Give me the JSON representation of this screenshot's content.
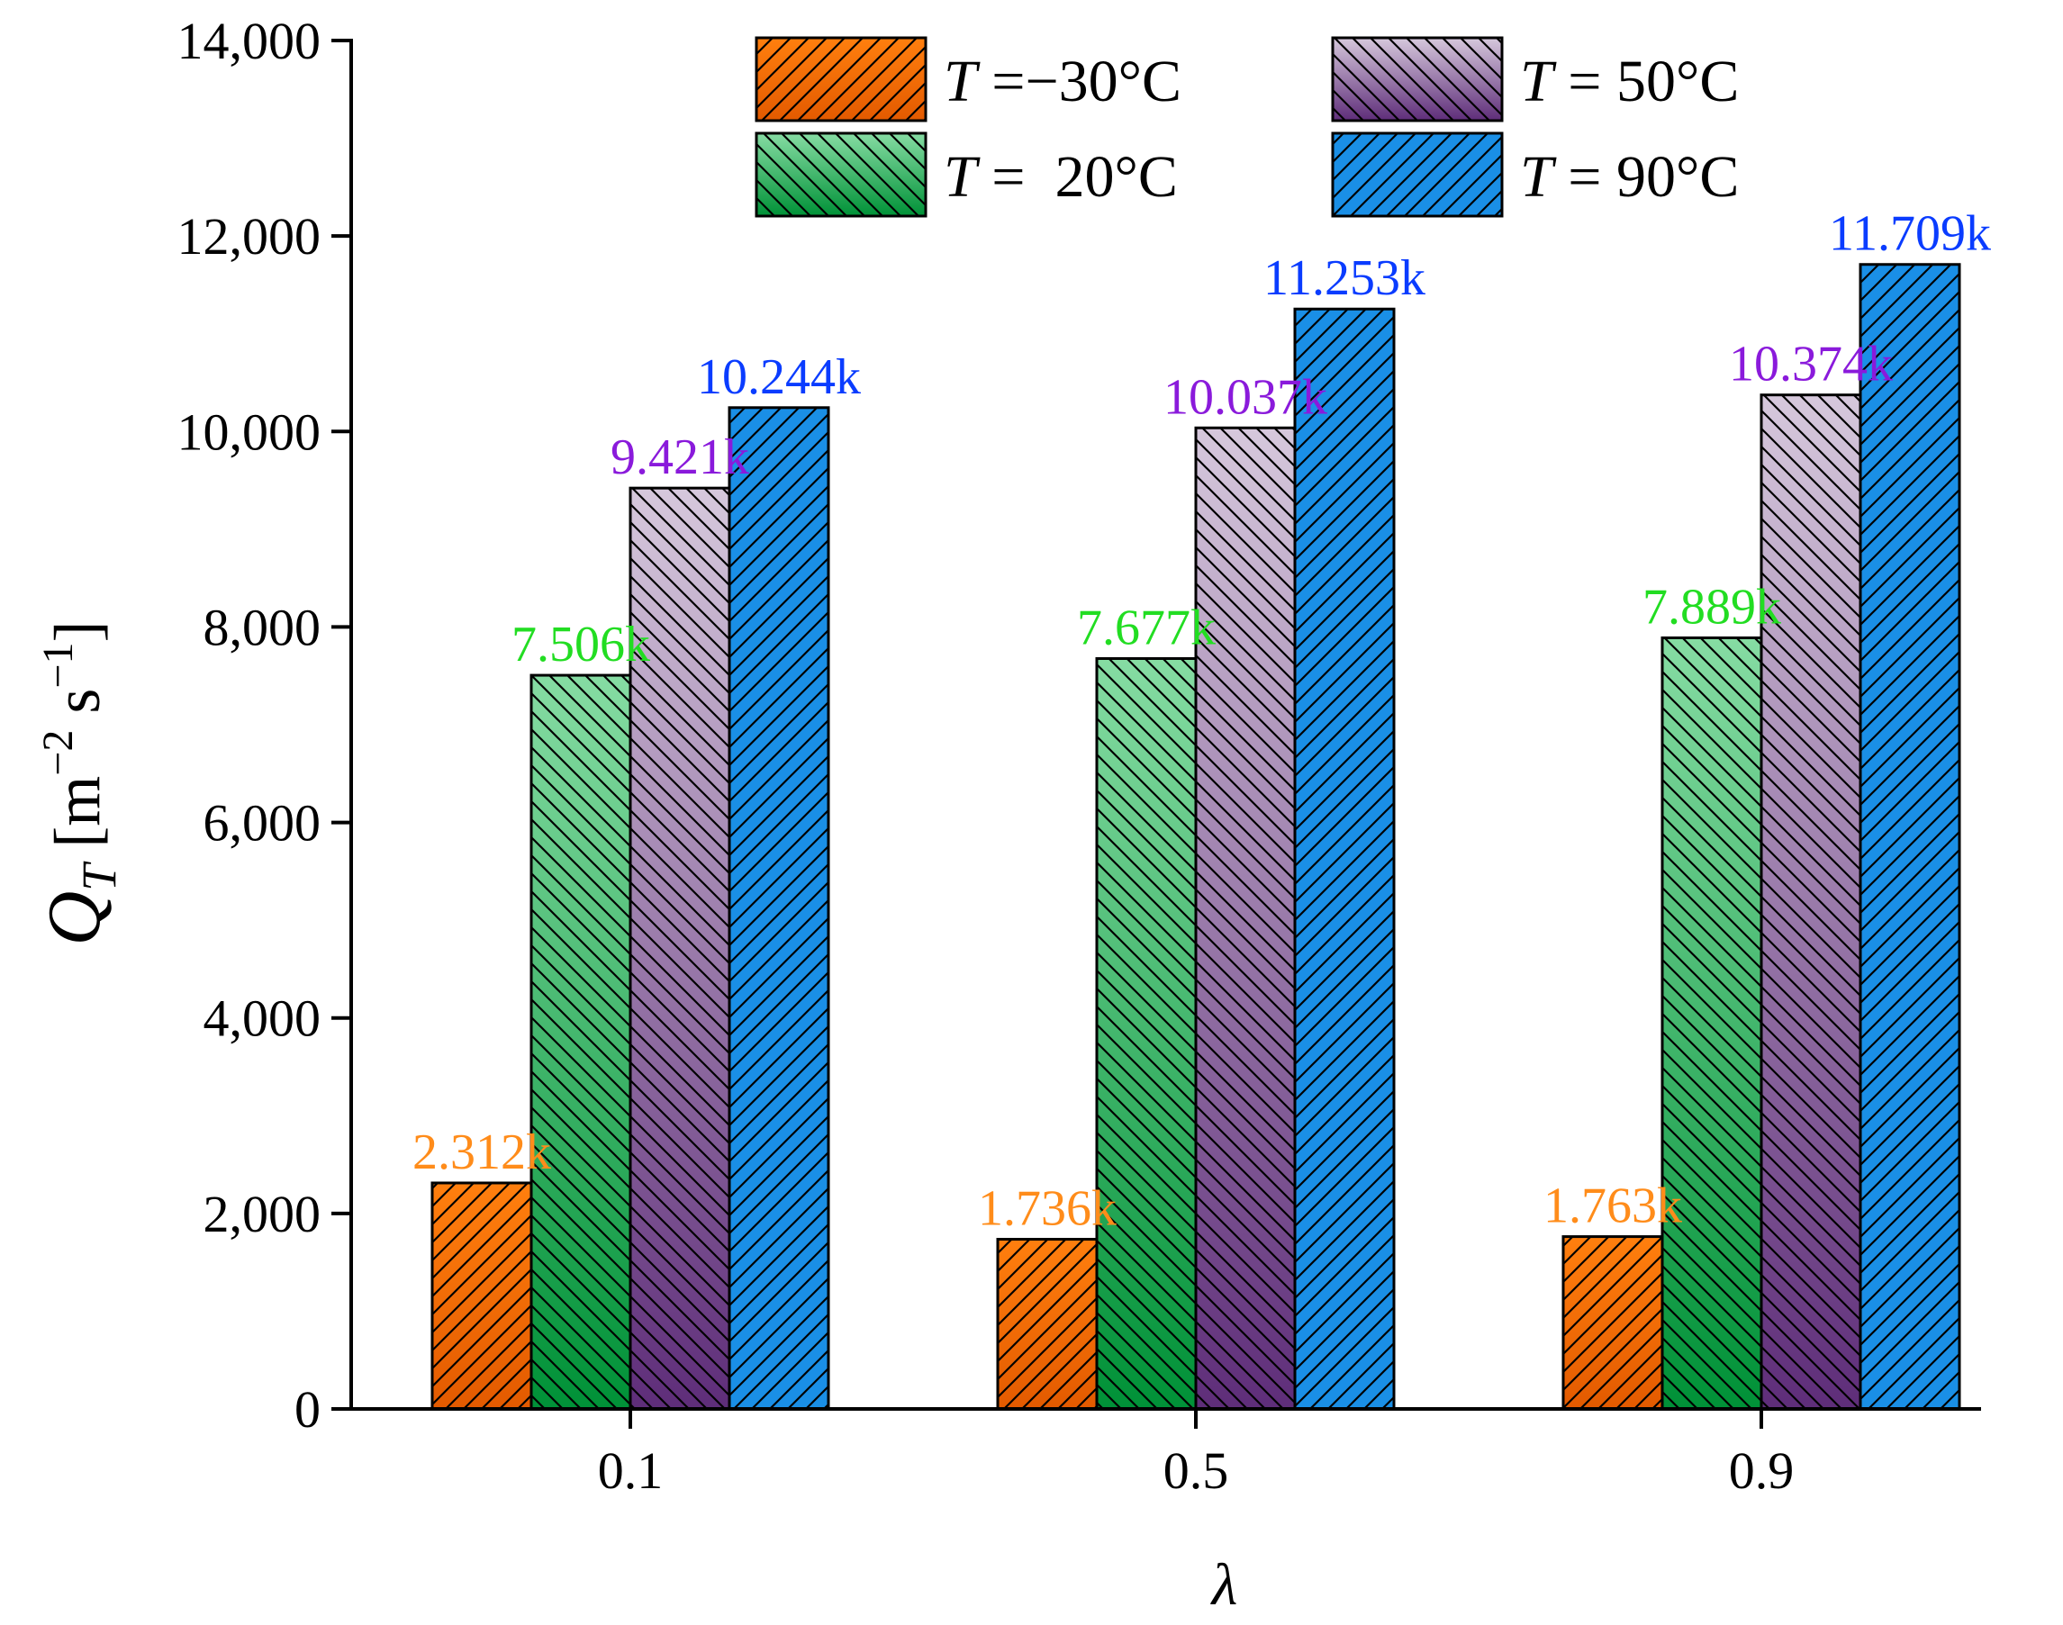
{
  "chart_data": {
    "type": "bar",
    "title": "",
    "xlabel": "λ",
    "ylabel": {
      "symbol": "Q",
      "subscript": "T",
      "unit_prefix": "[m",
      "exp1": "−2",
      "unit_mid": " s",
      "exp2": "−1",
      "unit_suffix": "]"
    },
    "categories": [
      "0.1",
      "0.5",
      "0.9"
    ],
    "ylim": [
      0,
      14000
    ],
    "yticks": [
      0,
      2000,
      4000,
      6000,
      8000,
      10000,
      12000,
      14000
    ],
    "ytick_labels": [
      "0",
      "2,000",
      "4,000",
      "6,000",
      "8,000",
      "10,000",
      "12,000",
      "14,000"
    ],
    "legend_position": "top-right",
    "series": [
      {
        "name": "T =−30°C",
        "legend_var": "T",
        "legend_rest": " =−30°C",
        "values": [
          2312,
          1736,
          1763
        ],
        "labels": [
          "2.312k",
          "1.736k",
          "1.763k"
        ],
        "fill_top": "#ff7f0e",
        "fill_bottom": "#e35a00",
        "label_color": "#ff8c1a",
        "hatch": "forward"
      },
      {
        "name": "T =  20°C",
        "legend_var": "T",
        "legend_rest": " =  20°C",
        "values": [
          7506,
          7677,
          7889
        ],
        "labels": [
          "7.506k",
          "7.677k",
          "7.889k"
        ],
        "fill_top": "#86dca3",
        "fill_bottom": "#009137",
        "label_color": "#22dd22",
        "hatch": "backward"
      },
      {
        "name": "T = 50°C",
        "legend_var": "T",
        "legend_rest": " = 50°C",
        "values": [
          9421,
          10037,
          10374
        ],
        "labels": [
          "9.421k",
          "10.037k",
          "10.374k"
        ],
        "fill_top": "#d6c8dc",
        "fill_bottom": "#5e2d79",
        "label_color": "#8a1adb",
        "hatch": "backward"
      },
      {
        "name": "T = 90°C",
        "legend_var": "T",
        "legend_rest": " = 90°C",
        "values": [
          10244,
          11253,
          11709
        ],
        "labels": [
          "10.244k",
          "11.253k",
          "11.709k"
        ],
        "fill_top": "#1a8fe6",
        "fill_bottom": "#1a8fe6",
        "label_color": "#0a3cff",
        "hatch": "forward"
      }
    ]
  }
}
